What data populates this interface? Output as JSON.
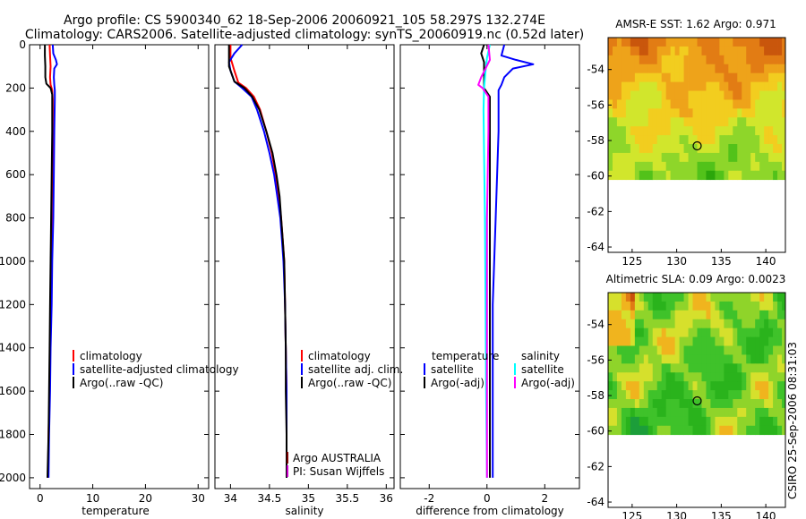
{
  "figure": {
    "title_line1": "Argo profile: CS 5900340_62 18-Sep-2006 20060921_105 58.297S 132.274E",
    "title_line2": "Climatology: CARS2006. Satellite-adjusted climatology: synTS_20060919.nc (0.52d later)",
    "side_stamp": "CSIRO 25-Sep-2006 08:31:03",
    "float_owner": "Argo AUSTRALIA",
    "float_pi": "PI: Susan Wijffels"
  },
  "colors": {
    "climatology": "#ff0000",
    "satellite": "#0000ff",
    "argo": "#000000",
    "salinity_satellite": "#00ffff",
    "salinity_argo": "#ff00ff",
    "argo_dark": "#7a0000",
    "marker": "#000000"
  },
  "chart_data": [
    {
      "type": "line",
      "id": "temperature",
      "xlabel": "temperature",
      "ylabel": "",
      "xlim": [
        -2,
        32
      ],
      "ylim": [
        2050,
        0
      ],
      "xticks": [
        0,
        10,
        20,
        30
      ],
      "yticks": [
        0,
        200,
        400,
        600,
        800,
        1000,
        1200,
        1400,
        1600,
        1800,
        2000
      ],
      "legend": [
        "climatology",
        "satellite-adjusted climatology",
        "Argo(..raw -QC)"
      ],
      "legend_position": "middle-right",
      "series": [
        {
          "name": "climatology",
          "color": "red",
          "points": [
            [
              1.8,
              0
            ],
            [
              1.9,
              50
            ],
            [
              2.0,
              100
            ],
            [
              1.9,
              150
            ],
            [
              2.0,
              185
            ],
            [
              2.3,
              210
            ],
            [
              2.4,
              250
            ],
            [
              2.4,
              400
            ],
            [
              2.3,
              600
            ],
            [
              2.2,
              800
            ],
            [
              2.1,
              1000
            ],
            [
              2.0,
              1200
            ],
            [
              1.9,
              1400
            ],
            [
              1.8,
              1600
            ],
            [
              1.6,
              1800
            ],
            [
              1.5,
              2000
            ]
          ]
        },
        {
          "name": "satellite-adjusted climatology",
          "color": "blue",
          "points": [
            [
              2.4,
              0
            ],
            [
              2.5,
              40
            ],
            [
              3.0,
              70
            ],
            [
              3.2,
              90
            ],
            [
              2.7,
              110
            ],
            [
              2.6,
              150
            ],
            [
              2.7,
              185
            ],
            [
              2.8,
              210
            ],
            [
              2.8,
              250
            ],
            [
              2.7,
              400
            ],
            [
              2.6,
              600
            ],
            [
              2.5,
              800
            ],
            [
              2.3,
              1000
            ],
            [
              2.2,
              1200
            ],
            [
              2.0,
              1400
            ],
            [
              1.9,
              1600
            ],
            [
              1.7,
              1800
            ],
            [
              1.6,
              2000
            ]
          ]
        },
        {
          "name": "Argo(..raw -QC)",
          "color": "black",
          "points": [
            [
              0.9,
              0
            ],
            [
              0.9,
              50
            ],
            [
              1.0,
              100
            ],
            [
              1.0,
              150
            ],
            [
              1.2,
              180
            ],
            [
              2.0,
              200
            ],
            [
              2.3,
              230
            ],
            [
              2.3,
              400
            ],
            [
              2.2,
              600
            ],
            [
              2.1,
              800
            ],
            [
              2.0,
              1000
            ],
            [
              1.9,
              1200
            ],
            [
              1.8,
              1400
            ],
            [
              1.7,
              1600
            ],
            [
              1.6,
              1800
            ],
            [
              1.4,
              2000
            ]
          ]
        }
      ]
    },
    {
      "type": "line",
      "id": "salinity",
      "xlabel": "salinity",
      "ylabel": "",
      "xlim": [
        33.8,
        36.1
      ],
      "ylim": [
        2050,
        0
      ],
      "xticks": [
        34,
        34.5,
        35,
        35.5,
        36
      ],
      "xtick_labels": [
        "34",
        "34.5",
        "35",
        "35.5",
        "36"
      ],
      "legend": [
        "climatology",
        "satellite adj. clim.",
        "Argo(..raw -QC)"
      ],
      "legend_position": "middle-right",
      "series": [
        {
          "name": "climatology",
          "color": "red",
          "points": [
            [
              34.0,
              0
            ],
            [
              34.0,
              60
            ],
            [
              34.05,
              120
            ],
            [
              34.1,
              175
            ],
            [
              34.2,
              200
            ],
            [
              34.3,
              240
            ],
            [
              34.38,
              300
            ],
            [
              34.46,
              400
            ],
            [
              34.53,
              500
            ],
            [
              34.58,
              600
            ],
            [
              34.62,
              700
            ],
            [
              34.65,
              800
            ],
            [
              34.67,
              900
            ],
            [
              34.69,
              1000
            ],
            [
              34.7,
              1200
            ],
            [
              34.71,
              1400
            ],
            [
              34.72,
              1600
            ],
            [
              34.72,
              1800
            ],
            [
              34.72,
              2000
            ]
          ]
        },
        {
          "name": "satellite adj. clim.",
          "color": "blue",
          "points": [
            [
              34.15,
              0
            ],
            [
              34.05,
              40
            ],
            [
              33.98,
              80
            ],
            [
              34.0,
              120
            ],
            [
              34.05,
              170
            ],
            [
              34.15,
              200
            ],
            [
              34.27,
              240
            ],
            [
              34.34,
              300
            ],
            [
              34.43,
              400
            ],
            [
              34.5,
              500
            ],
            [
              34.56,
              600
            ],
            [
              34.6,
              700
            ],
            [
              34.64,
              800
            ],
            [
              34.66,
              900
            ],
            [
              34.68,
              1000
            ],
            [
              34.7,
              1200
            ],
            [
              34.71,
              1400
            ],
            [
              34.72,
              1600
            ],
            [
              34.72,
              1800
            ],
            [
              34.72,
              2000
            ]
          ]
        },
        {
          "name": "Argo(..raw -QC)",
          "color": "black",
          "points": [
            [
              33.98,
              0
            ],
            [
              33.98,
              100
            ],
            [
              34.05,
              170
            ],
            [
              34.18,
              200
            ],
            [
              34.28,
              240
            ],
            [
              34.37,
              300
            ],
            [
              34.46,
              400
            ],
            [
              34.54,
              500
            ],
            [
              34.59,
              600
            ],
            [
              34.63,
              700
            ],
            [
              34.65,
              800
            ],
            [
              34.67,
              900
            ],
            [
              34.69,
              1000
            ],
            [
              34.7,
              1200
            ],
            [
              34.71,
              1400
            ],
            [
              34.71,
              1600
            ],
            [
              34.72,
              1800
            ],
            [
              34.72,
              2000
            ]
          ]
        }
      ]
    },
    {
      "type": "line",
      "id": "difference",
      "xlabel": "difference from climatology",
      "ylabel": "",
      "xlim": [
        -3,
        3.2
      ],
      "ylim": [
        2050,
        0
      ],
      "xticks": [
        -2,
        0,
        2
      ],
      "legend": [
        "temperature",
        "satellite",
        "Argo(-adj)",
        "salinity",
        "satellite",
        "Argo(-adj)"
      ],
      "legend_position": "middle",
      "series": [
        {
          "name": "satellite",
          "group": "temperature",
          "color": "blue",
          "points": [
            [
              0.6,
              0
            ],
            [
              0.5,
              50
            ],
            [
              1.0,
              70
            ],
            [
              1.6,
              90
            ],
            [
              0.9,
              110
            ],
            [
              0.6,
              150
            ],
            [
              0.5,
              185
            ],
            [
              0.4,
              210
            ],
            [
              0.4,
              400
            ],
            [
              0.3,
              800
            ],
            [
              0.2,
              1200
            ],
            [
              0.2,
              1600
            ],
            [
              0.2,
              2000
            ]
          ]
        },
        {
          "name": "Argo(-adj)",
          "group": "temperature",
          "color": "black",
          "points": [
            [
              -0.1,
              0
            ],
            [
              -0.2,
              40
            ],
            [
              -0.1,
              80
            ],
            [
              -0.1,
              170
            ],
            [
              -0.1,
              200
            ],
            [
              0.1,
              240
            ],
            [
              0.1,
              400
            ],
            [
              0.1,
              800
            ],
            [
              0.1,
              1200
            ],
            [
              0.1,
              1600
            ],
            [
              0.1,
              2000
            ]
          ]
        },
        {
          "name": "satellite",
          "group": "salinity",
          "color": "cyan",
          "points": [
            [
              0.1,
              0
            ],
            [
              0.0,
              60
            ],
            [
              -0.05,
              120
            ],
            [
              -0.1,
              200
            ],
            [
              -0.12,
              300
            ],
            [
              -0.1,
              500
            ],
            [
              -0.07,
              800
            ],
            [
              -0.05,
              1200
            ],
            [
              -0.03,
              1600
            ],
            [
              0.0,
              2000
            ]
          ]
        },
        {
          "name": "Argo(-adj)",
          "group": "salinity",
          "color": "magenta",
          "points": [
            [
              0.05,
              0
            ],
            [
              0.1,
              70
            ],
            [
              -0.2,
              150
            ],
            [
              -0.3,
              185
            ],
            [
              -0.15,
              200
            ],
            [
              0.05,
              240
            ],
            [
              0.05,
              400
            ],
            [
              0.0,
              800
            ],
            [
              0.0,
              1200
            ],
            [
              0.0,
              1600
            ],
            [
              0.0,
              2000
            ]
          ]
        }
      ]
    },
    {
      "type": "heatmap",
      "id": "amsre_sst",
      "title": "AMSR-E SST: 1.62 Argo: 0.971",
      "xlim": [
        122.3,
        142.2
      ],
      "ylim": [
        -64.3,
        -52.2
      ],
      "xticks": [
        125,
        130,
        135,
        140
      ],
      "yticks": [
        -54,
        -56,
        -58,
        -60,
        -62,
        -64
      ],
      "data_ylim": [
        -60.2,
        -52.2
      ],
      "colormap": [
        "#0d8a00",
        "#2ba60b",
        "#52c21a",
        "#8ed62a",
        "#d1e62c",
        "#f2cd1f",
        "#eea31a",
        "#e27c14",
        "#c9560c"
      ],
      "base_level": 2.6,
      "marker": {
        "lon": 132.3,
        "lat": -58.3
      }
    },
    {
      "type": "heatmap",
      "id": "altimetric_sla",
      "title": "Altimetric SLA: 0.09 Argo: 0.0023",
      "xlim": [
        122.3,
        142.2
      ],
      "ylim": [
        -64.3,
        -52.2
      ],
      "xticks": [
        125,
        130,
        135,
        140
      ],
      "yticks": [
        -54,
        -56,
        -58,
        -60,
        -62,
        -64
      ],
      "data_ylim": [
        -60.2,
        -52.2
      ],
      "colormap": [
        "#10866a",
        "#1c9e3a",
        "#2ab31c",
        "#3fc22a",
        "#8fd42a",
        "#d6e02c",
        "#f0b41e",
        "#e07a14",
        "#c9500c"
      ],
      "base_level": 3.2,
      "marker": {
        "lon": 132.3,
        "lat": -58.3
      }
    }
  ]
}
